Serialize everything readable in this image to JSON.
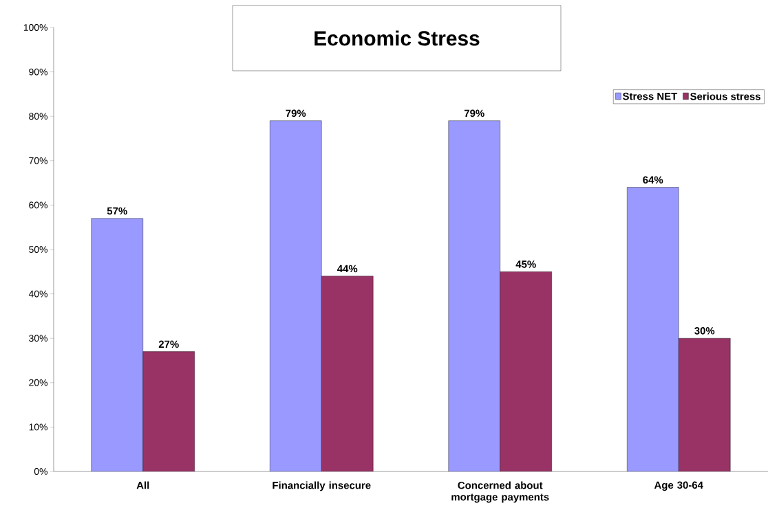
{
  "chart_data": {
    "type": "bar",
    "title": "Economic Stress",
    "categories": [
      "All",
      "Financially insecure",
      "Concerned about mortgage payments",
      "Age 30-64"
    ],
    "series": [
      {
        "name": "Stress NET",
        "color": "#9999ff",
        "values": [
          57,
          79,
          79,
          64
        ],
        "value_labels": [
          "57%",
          "79%",
          "79%",
          "64%"
        ]
      },
      {
        "name": "Serious stress",
        "color": "#993366",
        "values": [
          27,
          44,
          45,
          30
        ],
        "value_labels": [
          "27%",
          "44%",
          "45%",
          "30%"
        ]
      }
    ],
    "ylim": [
      0,
      100
    ],
    "yticks": [
      {
        "value": 0,
        "label": "0%"
      },
      {
        "value": 10,
        "label": "10%"
      },
      {
        "value": 20,
        "label": "20%"
      },
      {
        "value": 30,
        "label": "30%"
      },
      {
        "value": 40,
        "label": "40%"
      },
      {
        "value": 50,
        "label": "50%"
      },
      {
        "value": 60,
        "label": "60%"
      },
      {
        "value": 70,
        "label": "70%"
      },
      {
        "value": 80,
        "label": "80%"
      },
      {
        "value": 90,
        "label": "90%"
      },
      {
        "value": 100,
        "label": "100%"
      }
    ],
    "grid": false,
    "legend": "top right"
  }
}
